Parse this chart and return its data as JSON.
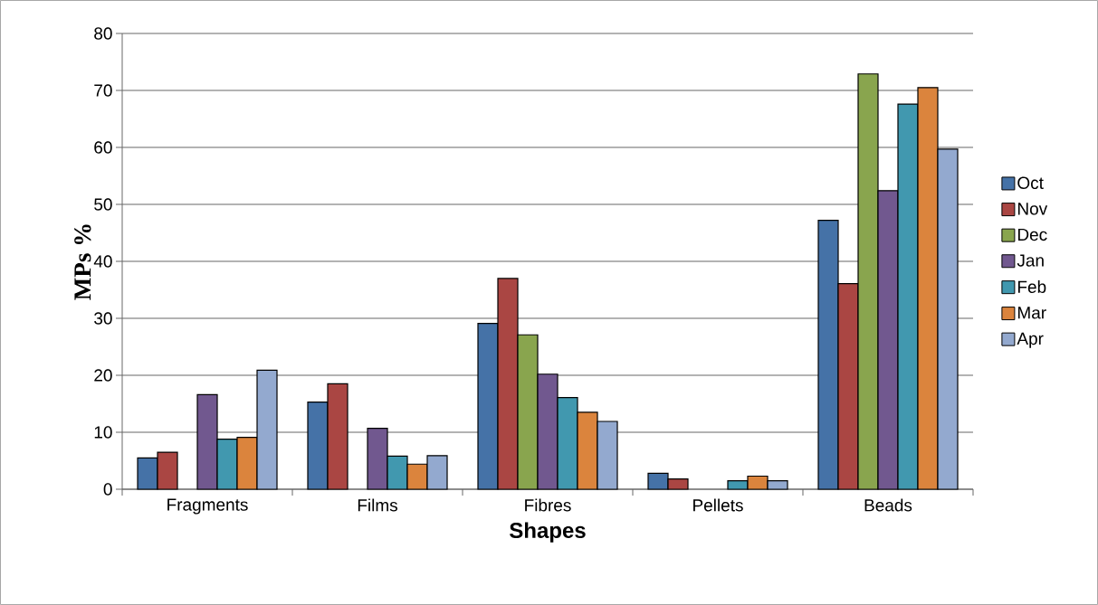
{
  "chart_data": {
    "type": "bar",
    "xlabel": "Shapes",
    "ylabel": "MPs %",
    "categories": [
      "Fragments",
      "Films",
      "Fibres",
      "Pellets",
      "Beads"
    ],
    "series": [
      {
        "name": "Oct",
        "color": "#4572a7",
        "values": [
          5.5,
          15.3,
          29.1,
          2.8,
          47.2
        ]
      },
      {
        "name": "Nov",
        "color": "#aa4643",
        "values": [
          6.5,
          18.5,
          37.0,
          1.8,
          36.1
        ]
      },
      {
        "name": "Dec",
        "color": "#89a54e",
        "values": [
          null,
          null,
          27.1,
          null,
          72.9
        ]
      },
      {
        "name": "Jan",
        "color": "#71588f",
        "values": [
          16.6,
          10.7,
          20.2,
          null,
          52.4
        ]
      },
      {
        "name": "Feb",
        "color": "#4198af",
        "values": [
          8.8,
          5.8,
          16.1,
          1.5,
          67.6
        ]
      },
      {
        "name": "Mar",
        "color": "#db843d",
        "values": [
          9.1,
          4.4,
          13.5,
          2.3,
          70.5
        ]
      },
      {
        "name": "Apr",
        "color": "#93a9cf",
        "values": [
          20.9,
          5.9,
          11.9,
          1.5,
          59.7
        ]
      }
    ],
    "ylim": [
      0,
      80
    ],
    "yticks": [
      0,
      10,
      20,
      30,
      40,
      50,
      60,
      70,
      80
    ],
    "grid": "y",
    "legend": "right"
  }
}
